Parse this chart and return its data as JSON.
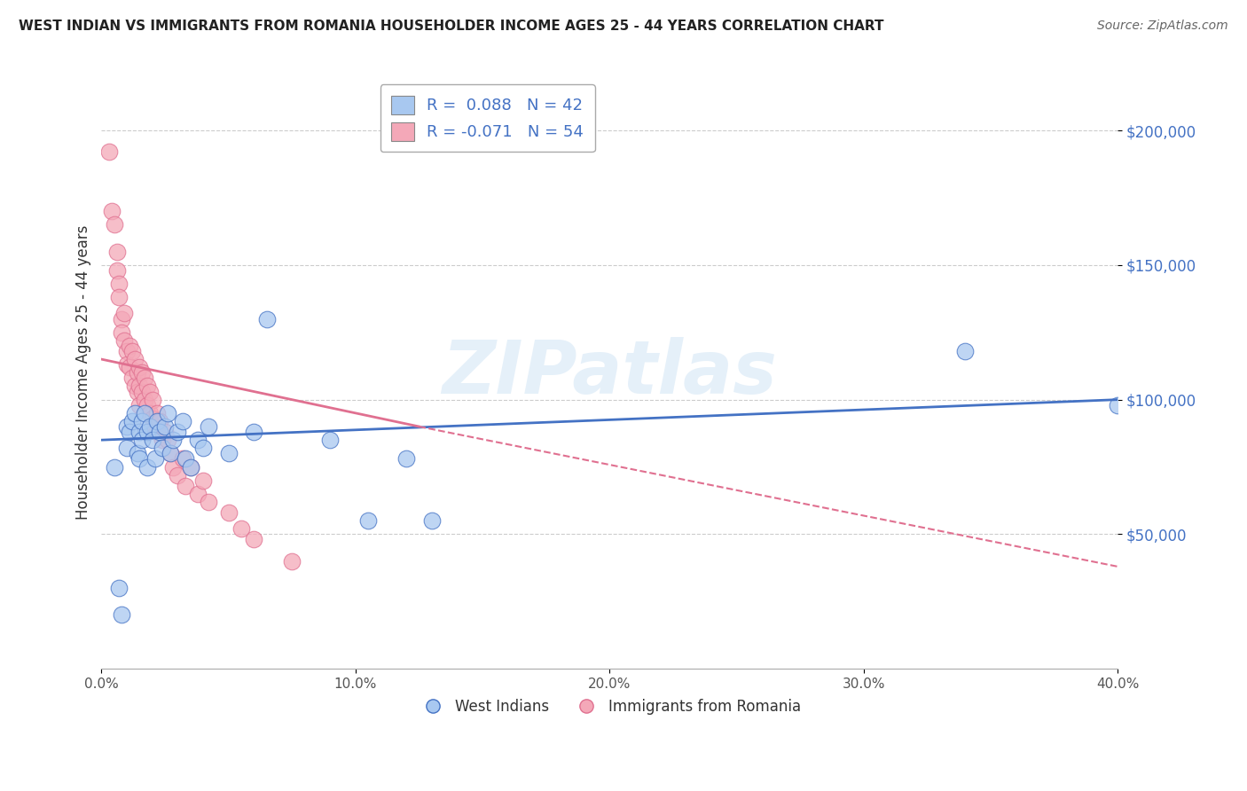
{
  "title": "WEST INDIAN VS IMMIGRANTS FROM ROMANIA HOUSEHOLDER INCOME AGES 25 - 44 YEARS CORRELATION CHART",
  "source": "Source: ZipAtlas.com",
  "ylabel": "Householder Income Ages 25 - 44 years",
  "xmin": 0.0,
  "xmax": 0.4,
  "ymin": 0,
  "ymax": 220000,
  "yticks": [
    50000,
    100000,
    150000,
    200000
  ],
  "ytick_labels": [
    "$50,000",
    "$100,000",
    "$150,000",
    "$200,000"
  ],
  "legend_r1": "R =  0.088   N = 42",
  "legend_r2": "R = -0.071   N = 54",
  "color_blue": "#A8C8F0",
  "color_pink": "#F4A8B8",
  "line_blue": "#4472C4",
  "line_pink": "#E07090",
  "trendline_blue_x0": 0.0,
  "trendline_blue_y0": 85000,
  "trendline_blue_x1": 0.4,
  "trendline_blue_y1": 100000,
  "trendline_pink_solid_x0": 0.0,
  "trendline_pink_solid_y0": 115000,
  "trendline_pink_solid_x1": 0.125,
  "trendline_pink_solid_y1": 90000,
  "trendline_pink_dash_x0": 0.125,
  "trendline_pink_dash_y0": 90000,
  "trendline_pink_dash_x1": 0.4,
  "trendline_pink_dash_y1": 38000,
  "west_indians_x": [
    0.005,
    0.007,
    0.008,
    0.01,
    0.01,
    0.011,
    0.012,
    0.013,
    0.014,
    0.015,
    0.015,
    0.016,
    0.016,
    0.017,
    0.018,
    0.018,
    0.019,
    0.02,
    0.021,
    0.022,
    0.023,
    0.024,
    0.025,
    0.026,
    0.027,
    0.028,
    0.03,
    0.032,
    0.033,
    0.035,
    0.038,
    0.04,
    0.042,
    0.05,
    0.06,
    0.065,
    0.09,
    0.105,
    0.12,
    0.13,
    0.34,
    0.4
  ],
  "west_indians_y": [
    75000,
    30000,
    20000,
    82000,
    90000,
    88000,
    92000,
    95000,
    80000,
    88000,
    78000,
    92000,
    85000,
    95000,
    75000,
    88000,
    90000,
    85000,
    78000,
    92000,
    88000,
    82000,
    90000,
    95000,
    80000,
    85000,
    88000,
    92000,
    78000,
    75000,
    85000,
    82000,
    90000,
    80000,
    88000,
    130000,
    85000,
    55000,
    78000,
    55000,
    118000,
    98000
  ],
  "romania_x": [
    0.003,
    0.004,
    0.005,
    0.006,
    0.006,
    0.007,
    0.007,
    0.008,
    0.008,
    0.009,
    0.009,
    0.01,
    0.01,
    0.011,
    0.011,
    0.012,
    0.012,
    0.013,
    0.013,
    0.014,
    0.014,
    0.015,
    0.015,
    0.015,
    0.016,
    0.016,
    0.017,
    0.017,
    0.018,
    0.018,
    0.019,
    0.019,
    0.02,
    0.02,
    0.021,
    0.022,
    0.022,
    0.023,
    0.024,
    0.025,
    0.026,
    0.027,
    0.028,
    0.03,
    0.032,
    0.033,
    0.035,
    0.038,
    0.04,
    0.042,
    0.05,
    0.055,
    0.06,
    0.075
  ],
  "romania_y": [
    192000,
    170000,
    165000,
    155000,
    148000,
    143000,
    138000,
    130000,
    125000,
    132000,
    122000,
    118000,
    113000,
    120000,
    112000,
    118000,
    108000,
    115000,
    105000,
    110000,
    103000,
    112000,
    105000,
    98000,
    110000,
    103000,
    100000,
    108000,
    105000,
    98000,
    103000,
    95000,
    100000,
    93000,
    90000,
    95000,
    88000,
    92000,
    85000,
    88000,
    85000,
    80000,
    75000,
    72000,
    78000,
    68000,
    75000,
    65000,
    70000,
    62000,
    58000,
    52000,
    48000,
    40000
  ],
  "watermark": "ZIPatlas",
  "bottom_legend_labels": [
    "West Indians",
    "Immigrants from Romania"
  ]
}
